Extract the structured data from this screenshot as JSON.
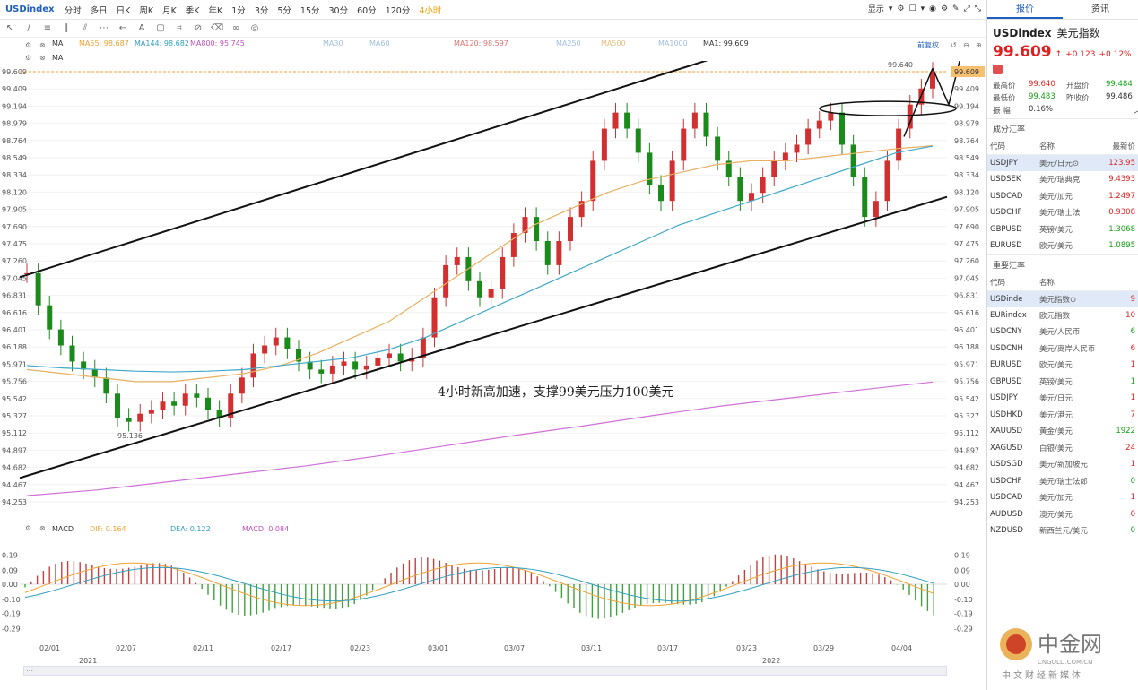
{
  "symbol": "USDindex",
  "timeframes": [
    "分时",
    "多日",
    "日K",
    "周K",
    "月K",
    "季K",
    "年K",
    "1分",
    "3分",
    "5分",
    "15分",
    "30分",
    "60分",
    "120分",
    "4小时"
  ],
  "active_timeframe": "4小时",
  "top_right": {
    "display_label": "显示"
  },
  "ma_row1": [
    {
      "label": "MA",
      "color": "#333333"
    },
    {
      "label": "MA55: 98.687",
      "color": "#f0a030"
    },
    {
      "label": "MA144: 98.682",
      "color": "#30a0c0"
    },
    {
      "label": "MA800: 95.745",
      "color": "#c050c0"
    },
    {
      "label": "MA30",
      "color": "#a0c0e0"
    },
    {
      "label": "MA60",
      "color": "#a0c0e0"
    },
    {
      "label": "MA120: 98.597",
      "color": "#e07070"
    },
    {
      "label": "MA250",
      "color": "#a0c0e0"
    },
    {
      "label": "MA500",
      "color": "#e0c080"
    },
    {
      "label": "MA1000",
      "color": "#a0c0e0"
    },
    {
      "label": "MA1: 99.609",
      "color": "#333333"
    }
  ],
  "ma_row1_right": "前复权",
  "ma_row2_label": "MA",
  "price_axis": [
    "99.609",
    "99.409",
    "99.194",
    "98.979",
    "98.764",
    "98.549",
    "98.334",
    "98.120",
    "97.905",
    "97.690",
    "97.475",
    "97.260",
    "97.045",
    "96.831",
    "96.616",
    "96.401",
    "96.188",
    "95.971",
    "95.756",
    "95.542",
    "95.327",
    "95.112",
    "94.897",
    "94.682",
    "94.467",
    "94.253"
  ],
  "high_label": "99.640",
  "low_label": "95.136",
  "annotation": "4小时新高加速，支撑99美元压力100美元",
  "macd_labels": {
    "name": "MACD",
    "dif": "DIF: 0.164",
    "dea": "DEA: 0.122",
    "macd": "MACD: 0.084"
  },
  "macd_axis": [
    "0.19",
    "0.09",
    "0.00",
    "-0.10",
    "-0.19",
    "-0.29"
  ],
  "dates": [
    "02/01",
    "02/07",
    "02/11",
    "02/17",
    "02/23",
    "03/01",
    "03/07",
    "03/11",
    "03/17",
    "03/23",
    "03/29",
    "04/04"
  ],
  "years": [
    "2021",
    "2022"
  ],
  "chart_data": {
    "type": "candlestick",
    "ylim": [
      94.253,
      99.609
    ],
    "last": 99.609,
    "high": 99.64,
    "low": 95.136,
    "closes": [
      97.1,
      96.7,
      96.4,
      96.2,
      96.0,
      95.9,
      95.8,
      95.6,
      95.3,
      95.25,
      95.35,
      95.4,
      95.5,
      95.45,
      95.6,
      95.55,
      95.4,
      95.3,
      95.6,
      95.8,
      96.1,
      96.2,
      96.3,
      96.15,
      96.0,
      95.9,
      95.85,
      95.95,
      96.0,
      95.9,
      95.95,
      96.05,
      96.1,
      96.0,
      96.05,
      96.3,
      96.8,
      97.2,
      97.3,
      97.0,
      96.8,
      96.9,
      97.3,
      97.6,
      97.8,
      97.5,
      97.2,
      97.5,
      97.8,
      98.0,
      98.5,
      98.9,
      99.1,
      98.9,
      98.6,
      98.2,
      98.0,
      98.5,
      98.9,
      99.1,
      98.8,
      98.5,
      98.3,
      98.0,
      98.1,
      98.3,
      98.5,
      98.6,
      98.7,
      98.9,
      99.0,
      99.1,
      98.7,
      98.3,
      97.8,
      98.0,
      98.5,
      98.9,
      99.2,
      99.4,
      99.609
    ],
    "ma55": [
      95.9,
      95.85,
      95.8,
      95.75,
      95.75,
      95.8,
      95.85,
      95.95,
      96.1,
      96.3,
      96.5,
      96.8,
      97.1,
      97.4,
      97.7,
      97.9,
      98.1,
      98.25,
      98.35,
      98.45,
      98.5,
      98.5,
      98.55,
      98.6,
      98.65,
      98.687
    ],
    "ma144": [
      95.95,
      95.92,
      95.9,
      95.88,
      95.87,
      95.88,
      95.9,
      95.95,
      96.0,
      96.05,
      96.15,
      96.3,
      96.5,
      96.7,
      96.9,
      97.1,
      97.3,
      97.5,
      97.7,
      97.85,
      98.0,
      98.15,
      98.3,
      98.45,
      98.6,
      98.682
    ],
    "ma800": [
      94.33,
      94.4,
      94.5,
      94.6,
      94.7,
      94.82,
      94.95,
      95.08,
      95.2,
      95.33,
      95.45,
      95.55,
      95.65,
      95.745
    ]
  }
}
